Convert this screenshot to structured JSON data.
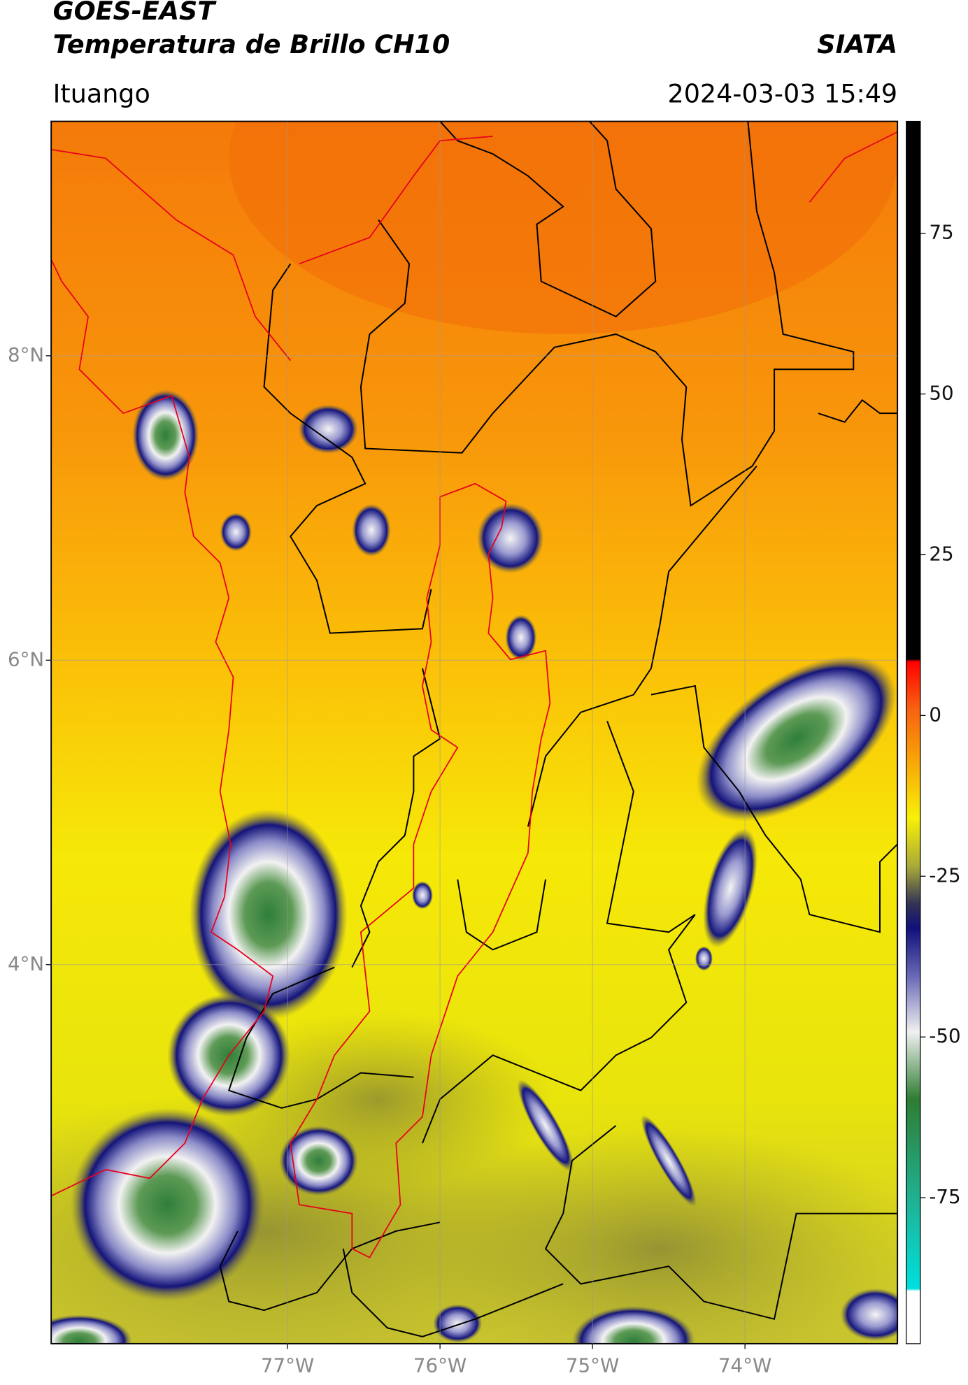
{
  "chart_data": {
    "type": "map",
    "title": "GOES-EAST",
    "subtitle": "Temperatura de Brillo CH10",
    "source": "SIATA",
    "location": "Ituango",
    "date": "2024-03-03 15:49",
    "xlim": [
      -78.55,
      -73.0
    ],
    "ylim": [
      1.51,
      9.54
    ],
    "xticks": [
      {
        "value": -77,
        "label": "77°W"
      },
      {
        "value": -76,
        "label": "76°W"
      },
      {
        "value": -75,
        "label": "75°W"
      },
      {
        "value": -74,
        "label": "74°W"
      }
    ],
    "yticks": [
      {
        "value": 8,
        "label": "8°N"
      },
      {
        "value": 6,
        "label": "6°N"
      },
      {
        "value": 4,
        "label": "4°N"
      }
    ],
    "grid": true,
    "colorbar": {
      "lim": [
        -97.7,
        92.4
      ],
      "ticks": [
        75,
        50,
        25,
        0,
        -25,
        -50,
        -75
      ]
    }
  }
}
